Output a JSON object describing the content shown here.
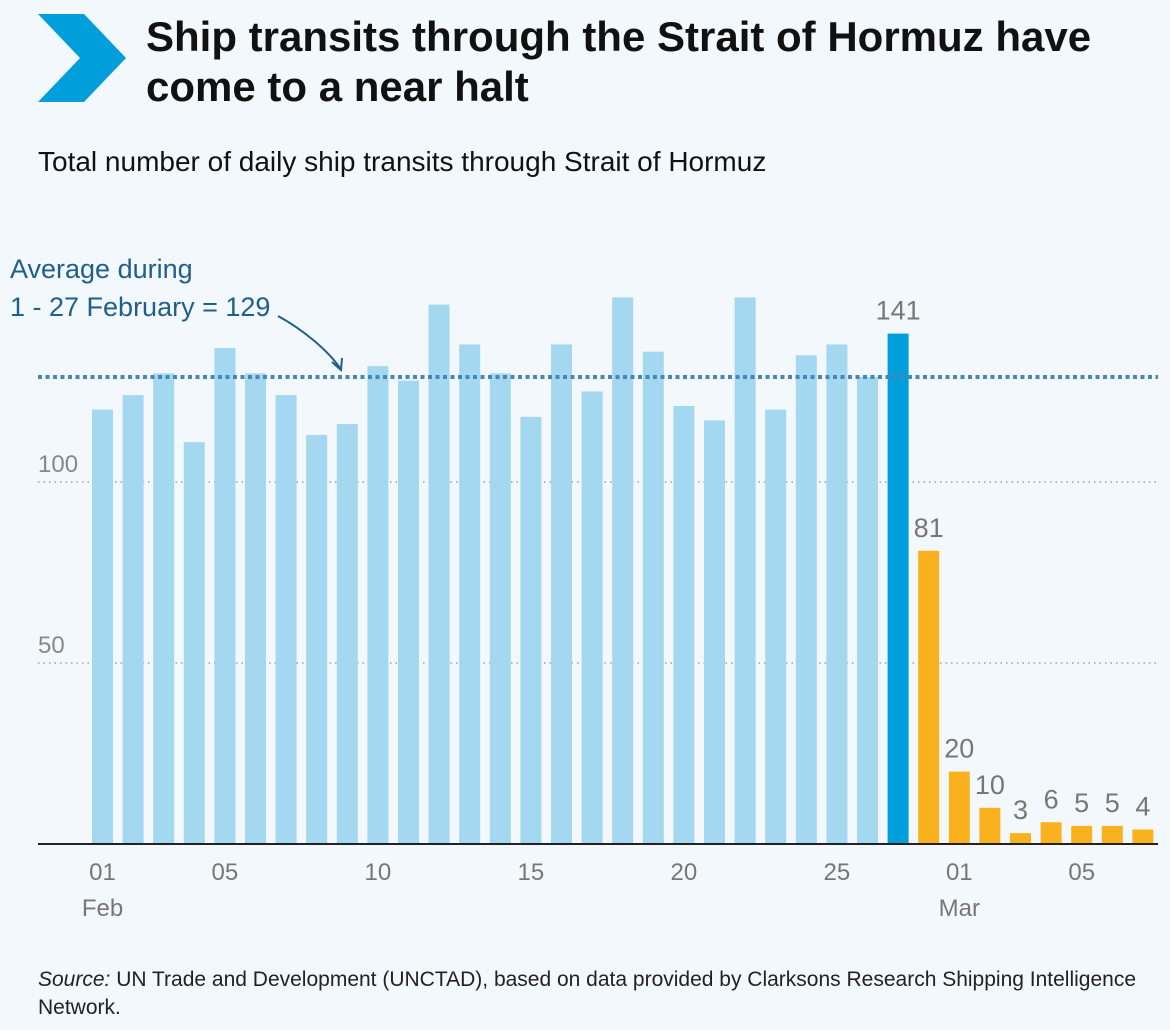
{
  "header": {
    "title": "Ship transits through the Strait of Hormuz have come to a near halt",
    "subtitle": "Total number of daily ship transits through Strait of Hormuz"
  },
  "annotation": {
    "line1": "Average during",
    "line2": "1 - 27 February = 129"
  },
  "source": {
    "label": "Source:",
    "text": " UN Trade and Development (UNCTAD), based on data provided by Clarksons Research Shipping Intelligence Network."
  },
  "colors": {
    "feb": "#a3d8f0",
    "highlight": "#009edb",
    "mar": "#f9b11d",
    "average": "#4a86b4",
    "logo": "#009edb"
  },
  "chart_data": {
    "type": "bar",
    "title": "Total number of daily ship transits through Strait of Hormuz",
    "xlabel": "",
    "ylabel": "",
    "ylim": [
      0,
      150
    ],
    "yticks": [
      50,
      100
    ],
    "grid": true,
    "average": 129,
    "categories": [
      "01 Feb",
      "02 Feb",
      "03 Feb",
      "04 Feb",
      "05 Feb",
      "06 Feb",
      "07 Feb",
      "08 Feb",
      "09 Feb",
      "10 Feb",
      "11 Feb",
      "12 Feb",
      "13 Feb",
      "14 Feb",
      "15 Feb",
      "16 Feb",
      "17 Feb",
      "18 Feb",
      "19 Feb",
      "20 Feb",
      "21 Feb",
      "22 Feb",
      "23 Feb",
      "24 Feb",
      "25 Feb",
      "26 Feb",
      "27 Feb",
      "28 Feb",
      "01 Mar",
      "02 Mar",
      "03 Mar",
      "04 Mar",
      "05 Mar",
      "06 Mar",
      "07 Mar"
    ],
    "values": [
      120,
      124,
      130,
      111,
      137,
      130,
      124,
      113,
      116,
      132,
      128,
      149,
      138,
      130,
      118,
      138,
      125,
      151,
      136,
      121,
      117,
      151,
      120,
      135,
      138,
      129,
      141,
      81,
      20,
      10,
      3,
      6,
      5,
      5,
      4
    ],
    "bar_groups": [
      "feb",
      "feb",
      "feb",
      "feb",
      "feb",
      "feb",
      "feb",
      "feb",
      "feb",
      "feb",
      "feb",
      "feb",
      "feb",
      "feb",
      "feb",
      "feb",
      "feb",
      "feb",
      "feb",
      "feb",
      "feb",
      "feb",
      "feb",
      "feb",
      "feb",
      "feb",
      "highlight",
      "mar",
      "mar",
      "mar",
      "mar",
      "mar",
      "mar",
      "mar",
      "mar"
    ],
    "data_labels": [
      {
        "index": 26,
        "text": "141"
      },
      {
        "index": 27,
        "text": "81"
      },
      {
        "index": 28,
        "text": "20"
      },
      {
        "index": 29,
        "text": "10"
      },
      {
        "index": 30,
        "text": "3"
      },
      {
        "index": 31,
        "text": "6"
      },
      {
        "index": 32,
        "text": "5"
      },
      {
        "index": 33,
        "text": "5"
      },
      {
        "index": 34,
        "text": "4"
      }
    ],
    "x_ticks": [
      {
        "index": 0,
        "label": "01",
        "sub": "Feb"
      },
      {
        "index": 4,
        "label": "05",
        "sub": ""
      },
      {
        "index": 9,
        "label": "10",
        "sub": ""
      },
      {
        "index": 14,
        "label": "15",
        "sub": ""
      },
      {
        "index": 19,
        "label": "20",
        "sub": ""
      },
      {
        "index": 24,
        "label": "25",
        "sub": ""
      },
      {
        "index": 28,
        "label": "01",
        "sub": "Mar"
      },
      {
        "index": 32,
        "label": "05",
        "sub": ""
      }
    ]
  }
}
